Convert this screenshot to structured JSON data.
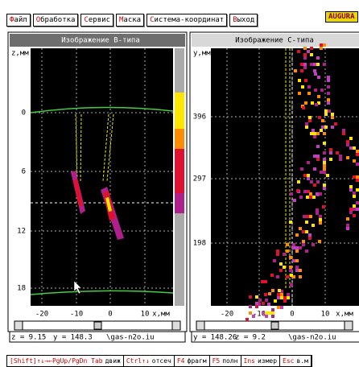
{
  "menu": [
    "Файл",
    "Обработка",
    "Сервис",
    "Маска",
    "Система-координат",
    "Выход"
  ],
  "badge": "AUGURA",
  "panels": [
    {
      "title": "Изображение B-типа",
      "y_axis_label": "z,мм",
      "y_ticks": [
        "0",
        "6",
        "12",
        "18"
      ],
      "x_ticks": [
        "-20",
        "-10",
        "0",
        "10"
      ],
      "x_axis_label": "x,мм",
      "status": [
        "z = 9.15",
        "y = 148.3",
        "\\gas-n2o.iu"
      ]
    },
    {
      "title": "Изображение C-типа",
      "y_axis_label": "y,мм",
      "y_ticks": [
        "396",
        "297",
        "198"
      ],
      "x_ticks": [
        "-20",
        "-10",
        "0",
        "10"
      ],
      "x_axis_label": "x,мм",
      "status": [
        "y = 148.26",
        "z = 9.2",
        "\\gas-n2o.iu"
      ]
    }
  ],
  "help": [
    {
      "key": "[Shift]↑↓→←PgUp/PgDn Tab",
      "text": "движ"
    },
    {
      "key": "Ctrl↑↓",
      "text": "отсеч"
    },
    {
      "key": "F4",
      "text": "фрагм"
    },
    {
      "key": "F5",
      "text": "полн"
    },
    {
      "key": "Ins",
      "text": "измер"
    },
    {
      "key": "Esc",
      "text": "в.м"
    }
  ]
}
